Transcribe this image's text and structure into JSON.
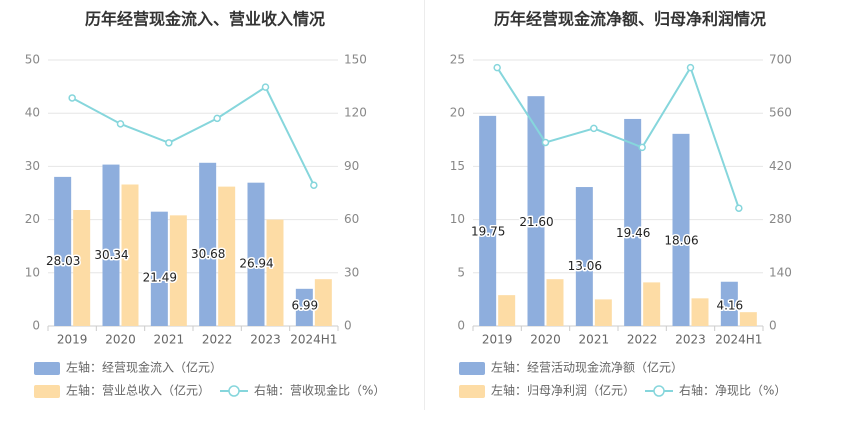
{
  "chart_data": [
    {
      "type": "bar",
      "title": "历年经营现金流入、营业收入情况",
      "categories": [
        "2019",
        "2020",
        "2021",
        "2022",
        "2023",
        "2024H1"
      ],
      "left_axis": {
        "ylim": [
          0,
          50
        ],
        "ticks": [
          "0",
          "10",
          "20",
          "30",
          "40",
          "50"
        ]
      },
      "right_axis": {
        "ylim": [
          0,
          150
        ],
        "ticks": [
          "0",
          "30",
          "60",
          "90",
          "120",
          "150"
        ]
      },
      "series": [
        {
          "name": "左轴：经营现金流入（亿元）",
          "type": "bar",
          "axis": "left",
          "color": "#8eaedd",
          "values": [
            28.03,
            30.34,
            21.49,
            30.68,
            26.94,
            6.99
          ],
          "labels": [
            "28.03",
            "30.34",
            "21.49",
            "30.68",
            "26.94",
            "6.99"
          ]
        },
        {
          "name": "左轴：营业总收入（亿元）",
          "type": "bar",
          "axis": "left",
          "color": "#fddca5",
          "values": [
            21.8,
            26.6,
            20.8,
            26.2,
            20.0,
            8.8
          ]
        },
        {
          "name": "右轴：营收现金比（%）",
          "type": "line",
          "axis": "right",
          "color": "#86d6dc",
          "values": [
            128.6,
            114.0,
            103.3,
            117.1,
            134.7,
            79.4
          ]
        }
      ]
    },
    {
      "type": "bar",
      "title": "历年经营现金流净额、归母净利润情况",
      "categories": [
        "2019",
        "2020",
        "2021",
        "2022",
        "2023",
        "2024H1"
      ],
      "left_axis": {
        "ylim": [
          0,
          25
        ],
        "ticks": [
          "0",
          "5",
          "10",
          "15",
          "20",
          "25"
        ]
      },
      "right_axis": {
        "ylim": [
          0,
          700
        ],
        "ticks": [
          "0",
          "140",
          "280",
          "420",
          "560",
          "700"
        ]
      },
      "series": [
        {
          "name": "左轴：经营活动现金流净额（亿元）",
          "type": "bar",
          "axis": "left",
          "color": "#8eaedd",
          "values": [
            19.75,
            21.6,
            13.06,
            19.46,
            18.06,
            4.16
          ],
          "labels": [
            "19.75",
            "21.60",
            "13.06",
            "19.46",
            "18.06",
            "4.16"
          ]
        },
        {
          "name": "左轴：归母净利润（亿元）",
          "type": "bar",
          "axis": "left",
          "color": "#fddca5",
          "values": [
            2.9,
            4.4,
            2.5,
            4.1,
            2.6,
            1.3
          ]
        },
        {
          "name": "右轴：净现比（%）",
          "type": "line",
          "axis": "right",
          "color": "#86d6dc",
          "values": [
            680,
            483,
            520,
            470,
            680,
            310
          ]
        }
      ]
    }
  ]
}
